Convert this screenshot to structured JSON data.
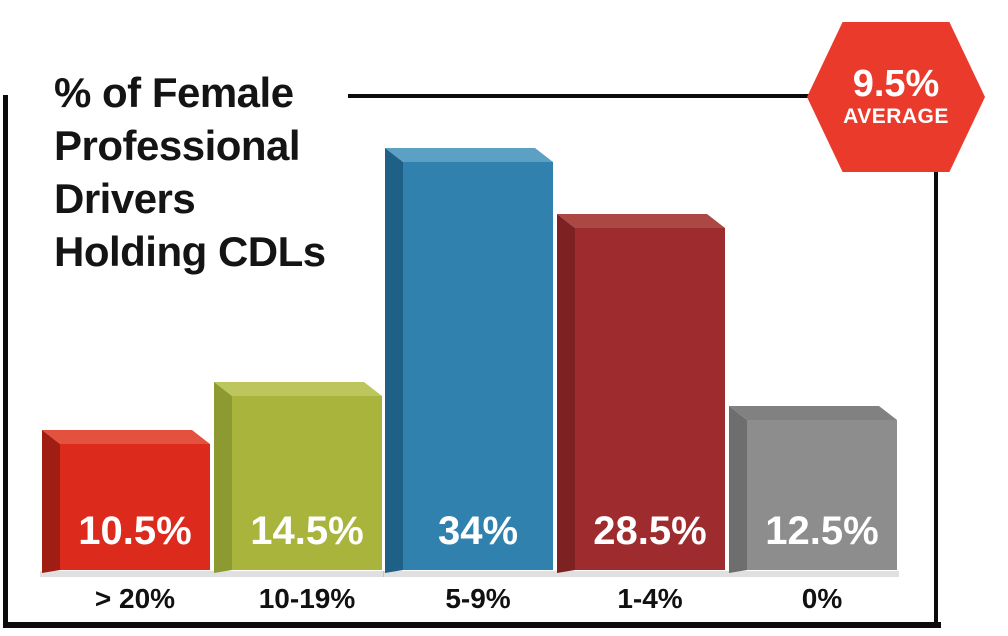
{
  "title": {
    "text": "% of Female\nProfessional\nDrivers\nHolding CDLs"
  },
  "average_badge": {
    "value": "9.5%",
    "label": "AVERAGE",
    "color": "#E93A2C"
  },
  "chart_data": {
    "type": "bar",
    "title": "% of Female Professional Drivers Holding CDLs",
    "categories": [
      "> 20%",
      "10-19%",
      "5-9%",
      "1-4%",
      "0%"
    ],
    "values": [
      10.5,
      14.5,
      34,
      28.5,
      12.5
    ],
    "value_labels": [
      "10.5%",
      "14.5%",
      "34%",
      "28.5%",
      "12.5%"
    ],
    "average": 9.5,
    "ylim": [
      0,
      34
    ],
    "grid": false,
    "axes_visible": false,
    "legend": "none",
    "style": "3d-extruded-bars",
    "value_label_color": "#FFFFFF",
    "category_label_color": "#111111",
    "frame_color": "#0B0B0B",
    "bar_colors": [
      {
        "face": "#DC2A1D",
        "side": "#A01D13",
        "top": "#E4513F"
      },
      {
        "face": "#A9B43C",
        "side": "#8D9A31",
        "top": "#BDC65C"
      },
      {
        "face": "#3181AF",
        "side": "#1E6086",
        "top": "#5CA0C4"
      },
      {
        "face": "#9E2C2E",
        "side": "#7D2123",
        "top": "#AC4843"
      },
      {
        "face": "#8D8D8D",
        "side": "#6E6E6E",
        "top": "#818181"
      }
    ]
  }
}
